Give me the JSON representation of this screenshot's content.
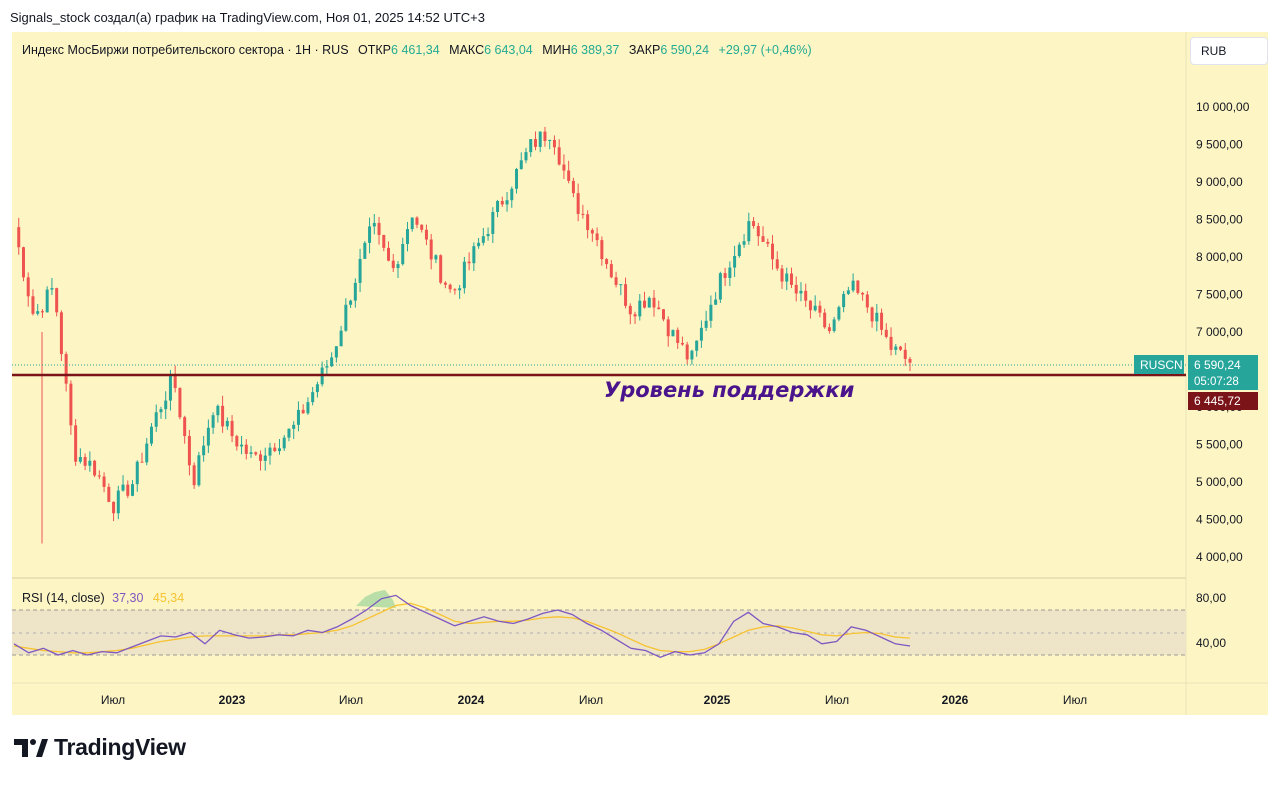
{
  "header": {
    "text": "Signals_stock создал(а) график на TradingView.com, Ноя 01, 2025 14:52 UTC+3"
  },
  "legend": {
    "title": "Индекс МосБиржи потребительского сектора · 1Н · RUS",
    "open_label": "ОТКР",
    "open": "6 461,34",
    "high_label": "МАКС",
    "high": "6 643,04",
    "low_label": "МИН",
    "low": "6 389,37",
    "close_label": "ЗАКР",
    "close": "6 590,24",
    "change": "+29,97 (+0,46%)"
  },
  "currency_button": "RUB",
  "annotation": "Уровень поддержки",
  "price_tag": {
    "symbol": "RUSCN",
    "price": "6 590,24",
    "countdown": "05:07:28"
  },
  "support_tag": {
    "price": "6 445,72"
  },
  "rsi": {
    "label": "RSI (14, close)",
    "rsi_value": "37,30",
    "ma_value": "45,34"
  },
  "brand": {
    "name": "TradingView"
  },
  "colors": {
    "background": "#fdf5c3",
    "up": "#26a69a",
    "down": "#ef5350",
    "support": "#7b1418",
    "rsi": "#7e57c2",
    "rsi_ma": "#f7c331"
  },
  "chart_data": [
    {
      "type": "candlestick",
      "title": "Индекс МосБиржи потребительского сектора",
      "y_ticks": [
        "10 000,00",
        "9 500,00",
        "9 000,00",
        "8 500,00",
        "8 000,00",
        "7 500,00",
        "7 000,00",
        "6 000,00",
        "5 500,00",
        "5 000,00",
        "4 500,00",
        "4 000,00"
      ],
      "x_ticks": [
        "Июл",
        "2023",
        "Июл",
        "2024",
        "Июл",
        "2025",
        "Июл",
        "2026",
        "Июл"
      ],
      "ylim": [
        3800,
        10500
      ],
      "support_level": 6445.72,
      "last_price": 6590.24,
      "series": [
        {
          "name": "close",
          "approx_path": [
            [
              "2022-01",
              8400
            ],
            [
              "2022-02",
              7200
            ],
            [
              "2022-03",
              7600
            ],
            [
              "2022-04",
              5400
            ],
            [
              "2022-05",
              5200
            ],
            [
              "2022-06",
              4700
            ],
            [
              "2022-07",
              5000
            ],
            [
              "2022-08",
              5800
            ],
            [
              "2022-09",
              6400
            ],
            [
              "2022-10",
              5000
            ],
            [
              "2022-11",
              6000
            ],
            [
              "2022-12",
              5600
            ],
            [
              "2023-01",
              5300
            ],
            [
              "2023-02",
              5500
            ],
            [
              "2023-03",
              5700
            ],
            [
              "2023-04",
              6200
            ],
            [
              "2023-05",
              6700
            ],
            [
              "2023-06",
              7600
            ],
            [
              "2023-07",
              8400
            ],
            [
              "2023-08",
              7800
            ],
            [
              "2023-09",
              8600
            ],
            [
              "2023-10",
              8000
            ],
            [
              "2023-11",
              7500
            ],
            [
              "2023-12",
              8000
            ],
            [
              "2024-01",
              8500
            ],
            [
              "2024-02",
              9000
            ],
            [
              "2024-03",
              9500
            ],
            [
              "2024-04",
              9700
            ],
            [
              "2024-05",
              8800
            ],
            [
              "2024-06",
              8400
            ],
            [
              "2024-07",
              7800
            ],
            [
              "2024-08",
              7300
            ],
            [
              "2024-09",
              7500
            ],
            [
              "2024-10",
              7000
            ],
            [
              "2024-11",
              6600
            ],
            [
              "2024-12",
              7400
            ],
            [
              "2025-01",
              8000
            ],
            [
              "2025-02",
              8500
            ],
            [
              "2025-03",
              8000
            ],
            [
              "2025-04",
              7600
            ],
            [
              "2025-05",
              7300
            ],
            [
              "2025-06",
              7000
            ],
            [
              "2025-07",
              7600
            ],
            [
              "2025-08",
              7300
            ],
            [
              "2025-09",
              6800
            ],
            [
              "2025-10",
              6590
            ]
          ]
        }
      ]
    },
    {
      "type": "line",
      "title": "RSI (14, close)",
      "y_ticks": [
        "80,00",
        "40,00"
      ],
      "ylim": [
        20,
        95
      ],
      "bands": [
        70,
        50,
        30
      ],
      "series": [
        {
          "name": "RSI",
          "approx_values": [
            40,
            32,
            36,
            30,
            34,
            30,
            33,
            32,
            37,
            42,
            47,
            46,
            50,
            40,
            52,
            48,
            45,
            46,
            48,
            47,
            52,
            50,
            55,
            62,
            70,
            80,
            83,
            74,
            68,
            62,
            56,
            60,
            64,
            60,
            58,
            62,
            67,
            70,
            66,
            58,
            52,
            44,
            36,
            34,
            28,
            33,
            30,
            32,
            40,
            60,
            68,
            58,
            55,
            50,
            48,
            40,
            42,
            55,
            52,
            46,
            40,
            38
          ]
        },
        {
          "name": "MA",
          "approx_values": [
            38,
            36,
            34,
            33,
            32,
            32,
            33,
            34,
            36,
            39,
            42,
            44,
            46,
            47,
            47,
            47,
            47,
            47,
            48,
            48,
            49,
            50,
            52,
            56,
            62,
            68,
            74,
            76,
            72,
            66,
            60,
            58,
            59,
            60,
            60,
            61,
            63,
            64,
            63,
            60,
            55,
            50,
            44,
            38,
            34,
            33,
            33,
            35,
            40,
            46,
            52,
            55,
            56,
            54,
            51,
            48,
            47,
            49,
            50,
            49,
            46,
            45
          ]
        }
      ]
    }
  ]
}
